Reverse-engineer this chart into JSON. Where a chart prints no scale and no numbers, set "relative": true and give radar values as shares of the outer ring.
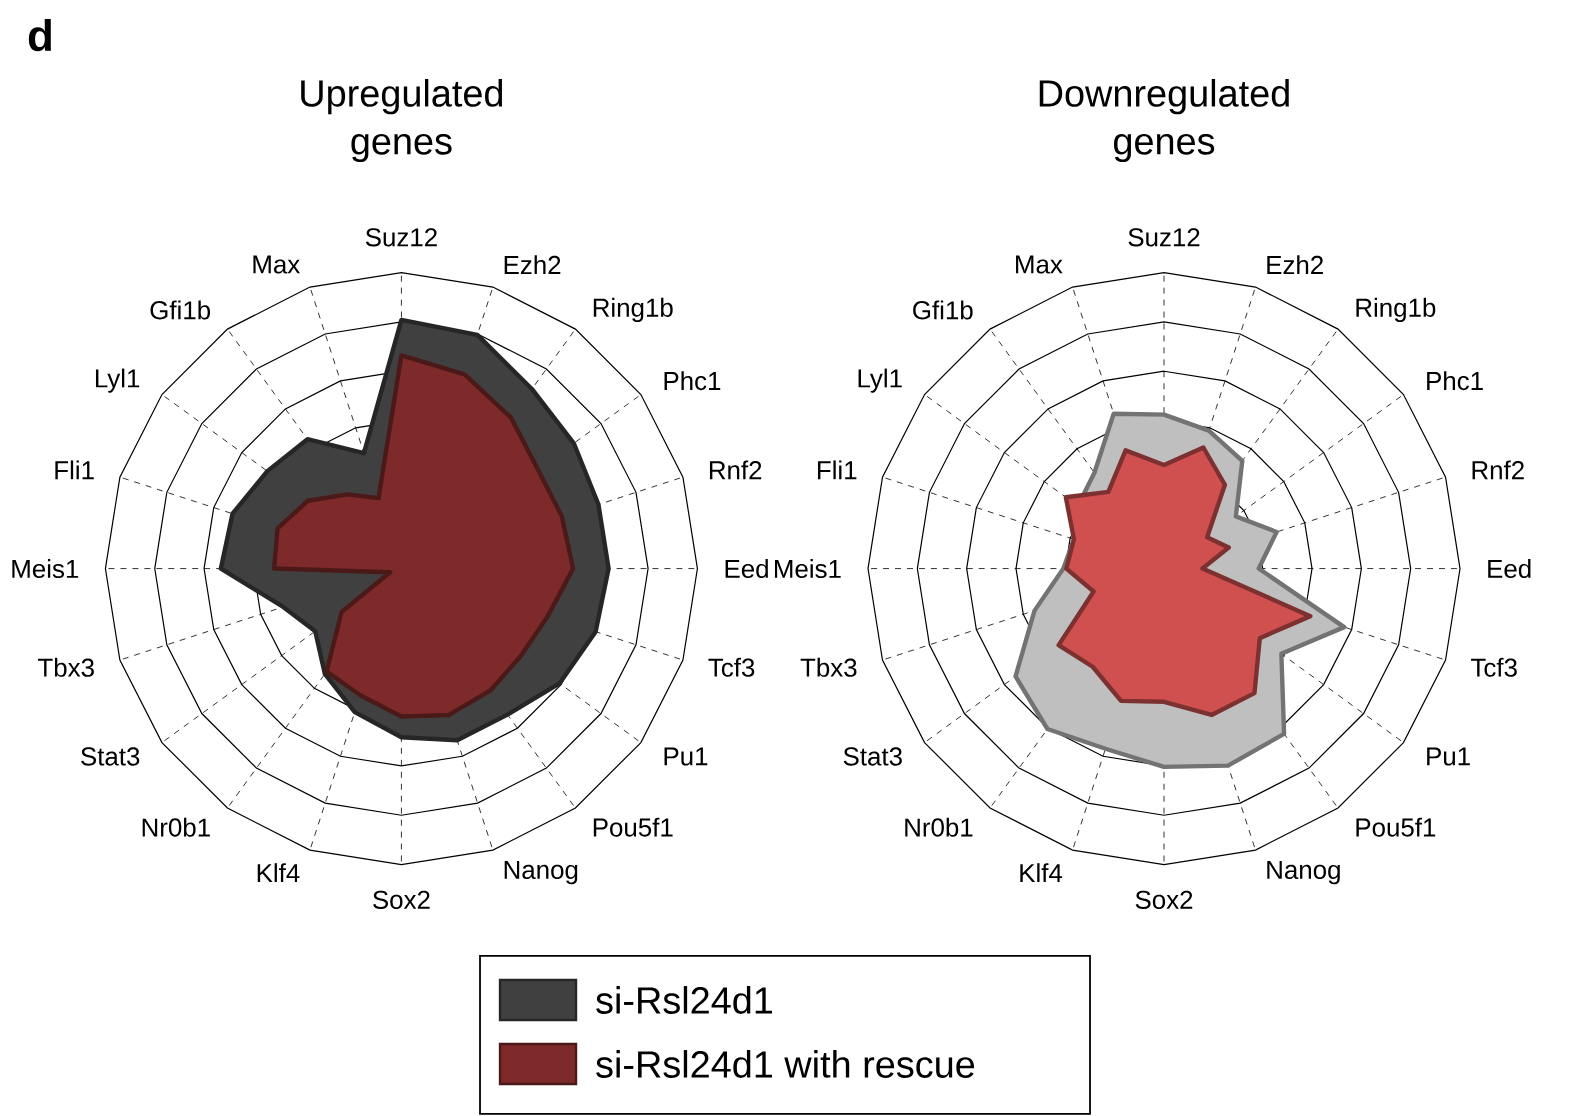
{
  "chart_data": [
    {
      "type": "radar",
      "title": "Upregulated genes",
      "annotations": [
        "d"
      ],
      "relative": true,
      "grid": true,
      "legend": "bottom",
      "categories": [
        "Suz12",
        "Ezh2",
        "Ring1b",
        "Phc1",
        "Rnf2",
        "Eed",
        "Tcf3",
        "Pu1",
        "Pou5f1",
        "Nanog",
        "Sox2",
        "Klf4",
        "Nr0b1",
        "Stat3",
        "Tbx3",
        "Meis1",
        "Fli1",
        "Lyl1",
        "Gfi1b",
        "Max"
      ],
      "series": [
        {
          "name": "si-Rsl24d1",
          "color": "#404040",
          "values": [
            0.84,
            0.83,
            0.75,
            0.72,
            0.7,
            0.7,
            0.69,
            0.66,
            0.61,
            0.61,
            0.57,
            0.51,
            0.44,
            0.36,
            0.42,
            0.61,
            0.6,
            0.56,
            0.54,
            0.41
          ]
        },
        {
          "name": "si-Rsl24d1 with rescue",
          "color": "#7f2a2a",
          "values": [
            0.72,
            0.69,
            0.63,
            0.57,
            0.57,
            0.58,
            0.52,
            0.5,
            0.51,
            0.52,
            0.5,
            0.45,
            0.43,
            0.25,
            0.04,
            0.43,
            0.44,
            0.39,
            0.31,
            0.25
          ]
        }
      ]
    },
    {
      "type": "radar",
      "title": "Downregulated genes",
      "relative": true,
      "grid": true,
      "categories": [
        "Suz12",
        "Ezh2",
        "Ring1b",
        "Phc1",
        "Rnf2",
        "Eed",
        "Tcf3",
        "Pu1",
        "Pou5f1",
        "Nanog",
        "Sox2",
        "Klf4",
        "Nr0b1",
        "Stat3",
        "Tbx3",
        "Meis1",
        "Fli1",
        "Lyl1",
        "Gfi1b",
        "Max"
      ],
      "series": [
        {
          "color": "#bfbfbf",
          "values": [
            0.52,
            0.49,
            0.45,
            0.3,
            0.4,
            0.32,
            0.64,
            0.49,
            0.69,
            0.7,
            0.67,
            0.64,
            0.67,
            0.62,
            0.46,
            0.34,
            0.32,
            0.36,
            0.4,
            0.55
          ]
        },
        {
          "color": "#d05050",
          "values": [
            0.35,
            0.43,
            0.35,
            0.18,
            0.23,
            0.13,
            0.52,
            0.4,
            0.52,
            0.52,
            0.45,
            0.47,
            0.41,
            0.44,
            0.25,
            0.33,
            0.32,
            0.41,
            0.32,
            0.42
          ]
        }
      ]
    }
  ]
}
